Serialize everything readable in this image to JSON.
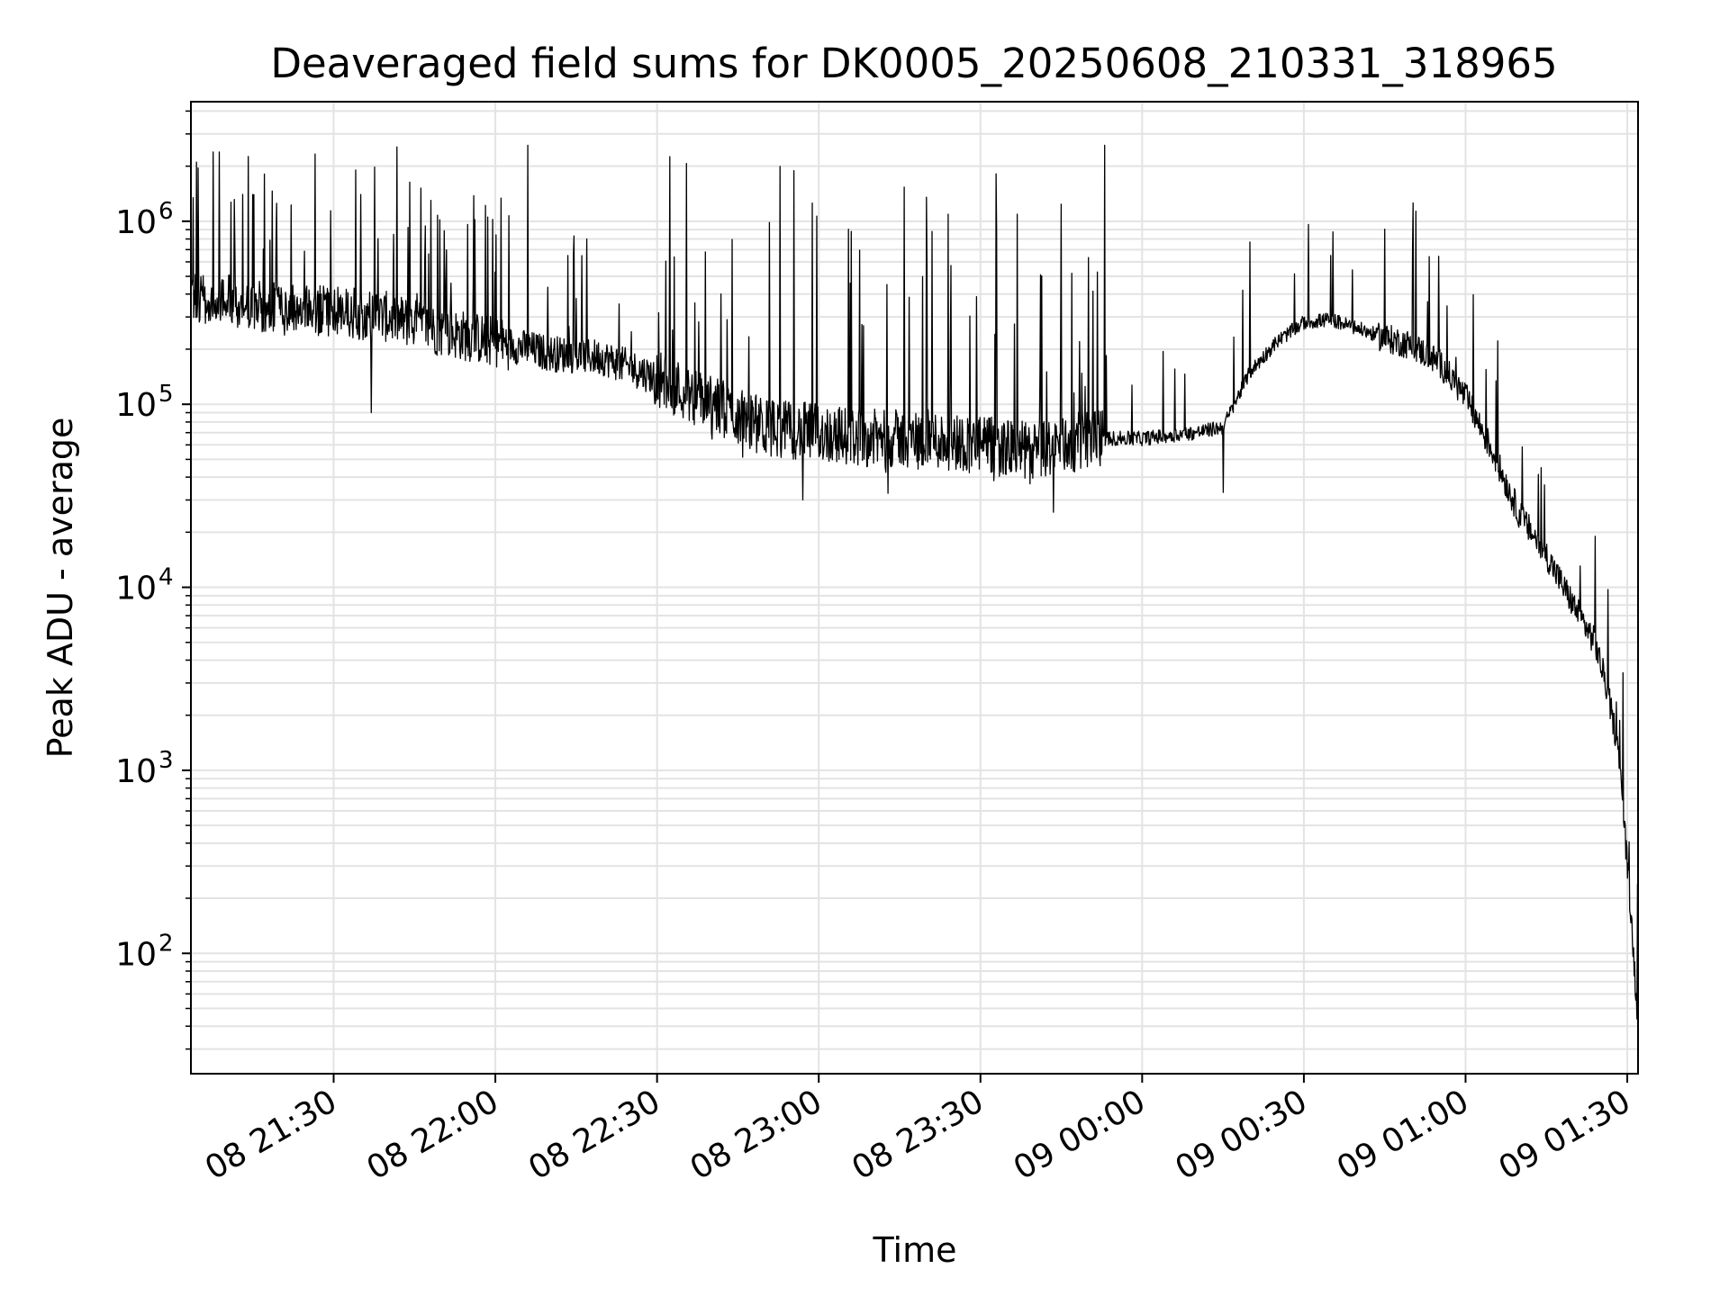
{
  "chart_data": {
    "type": "line",
    "title": "Deaveraged field sums for DK0005_20250608_210331_318965",
    "xlabel": "Time",
    "ylabel": "Peak ADU - average",
    "xlim": [
      "2025-06-08 21:03:31",
      "2025-06-09 01:32:00"
    ],
    "ylim": [
      22,
      4500000
    ],
    "yscale": "log",
    "grid": true,
    "x_ticks": [
      {
        "t": "2025-06-08 21:30:00",
        "label": "08 21:30"
      },
      {
        "t": "2025-06-08 22:00:00",
        "label": "08 22:00"
      },
      {
        "t": "2025-06-08 22:30:00",
        "label": "08 22:30"
      },
      {
        "t": "2025-06-08 23:00:00",
        "label": "08 23:00"
      },
      {
        "t": "2025-06-08 23:30:00",
        "label": "08 23:30"
      },
      {
        "t": "2025-06-09 00:00:00",
        "label": "09 00:00"
      },
      {
        "t": "2025-06-09 00:30:00",
        "label": "09 00:30"
      },
      {
        "t": "2025-06-09 01:00:00",
        "label": "09 01:00"
      },
      {
        "t": "2025-06-09 01:30:00",
        "label": "09 01:30"
      }
    ],
    "y_ticks": [
      {
        "value": 100,
        "base": "10",
        "exp": "2"
      },
      {
        "value": 1000,
        "base": "10",
        "exp": "3"
      },
      {
        "value": 10000,
        "base": "10",
        "exp": "4"
      },
      {
        "value": 100000,
        "base": "10",
        "exp": "5"
      },
      {
        "value": 1000000,
        "base": "10",
        "exp": "6"
      }
    ],
    "series": [
      {
        "color": "#000000",
        "x": [
          "2025-06-08 21:03:31",
          "2025-06-08 21:10:00",
          "2025-06-08 21:20:00",
          "2025-06-08 21:30:00",
          "2025-06-08 21:40:00",
          "2025-06-08 21:50:00",
          "2025-06-08 22:00:00",
          "2025-06-08 22:10:00",
          "2025-06-08 22:20:00",
          "2025-06-08 22:30:00",
          "2025-06-08 22:40:00",
          "2025-06-08 22:50:00",
          "2025-06-08 23:00:00",
          "2025-06-08 23:10:00",
          "2025-06-08 23:20:00",
          "2025-06-08 23:30:00",
          "2025-06-08 23:40:00",
          "2025-06-08 23:50:00",
          "2025-06-09 00:00:00",
          "2025-06-09 00:10:00",
          "2025-06-09 00:15:00",
          "2025-06-09 00:20:00",
          "2025-06-09 00:25:00",
          "2025-06-09 00:30:00",
          "2025-06-09 00:35:00",
          "2025-06-09 00:40:00",
          "2025-06-09 00:45:00",
          "2025-06-09 00:50:00",
          "2025-06-09 00:55:00",
          "2025-06-09 01:00:00",
          "2025-06-09 01:05:00",
          "2025-06-09 01:10:00",
          "2025-06-09 01:15:00",
          "2025-06-09 01:20:00",
          "2025-06-09 01:24:00",
          "2025-06-09 01:26:00",
          "2025-06-09 01:28:00",
          "2025-06-09 01:29:00",
          "2025-06-09 01:30:00",
          "2025-06-09 01:31:00",
          "2025-06-09 01:32:00"
        ],
        "y": [
          380000,
          370000,
          330000,
          320000,
          300000,
          250000,
          220000,
          190000,
          180000,
          140000,
          100000,
          75000,
          70000,
          65000,
          65000,
          60000,
          55000,
          65000,
          65000,
          70000,
          75000,
          150000,
          220000,
          280000,
          290000,
          260000,
          230000,
          210000,
          170000,
          110000,
          55000,
          25000,
          15000,
          8000,
          5000,
          3000,
          1500,
          800,
          300,
          120,
          40
        ],
        "spikes": [
          {
            "t": "2025-06-08 21:15:00",
            "v": 1400000
          },
          {
            "t": "2025-06-08 21:35:00",
            "v": 1400000
          },
          {
            "t": "2025-06-08 21:37:00",
            "v": 90000
          },
          {
            "t": "2025-06-08 21:48:00",
            "v": 1300000
          },
          {
            "t": "2025-06-08 22:06:00",
            "v": 2600000
          },
          {
            "t": "2025-06-08 22:17:00",
            "v": 800000
          },
          {
            "t": "2025-06-08 22:39:00",
            "v": 680000
          },
          {
            "t": "2025-06-08 22:57:00",
            "v": 30000
          },
          {
            "t": "2025-06-08 23:06:00",
            "v": 880000
          },
          {
            "t": "2025-06-08 23:21:00",
            "v": 880000
          },
          {
            "t": "2025-06-08 23:33:00",
            "v": 900000
          },
          {
            "t": "2025-06-08 23:53:00",
            "v": 2600000
          },
          {
            "t": "2025-06-09 00:15:00",
            "v": 33000
          },
          {
            "t": "2025-06-09 00:20:00",
            "v": 770000
          },
          {
            "t": "2025-06-09 00:35:00",
            "v": 650000
          },
          {
            "t": "2025-06-09 01:14:00",
            "v": 45000
          },
          {
            "t": "2025-06-09 01:24:00",
            "v": 19000
          }
        ]
      }
    ]
  }
}
